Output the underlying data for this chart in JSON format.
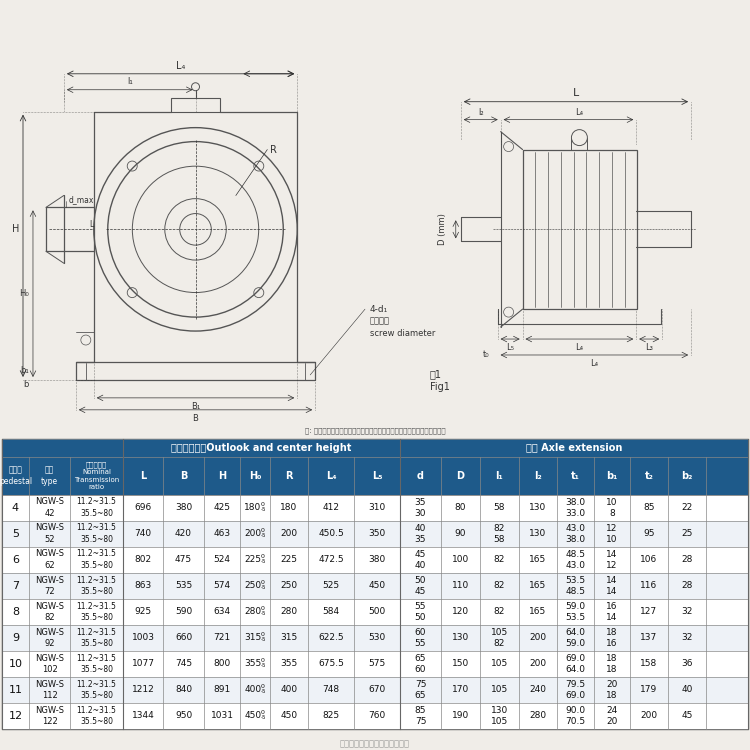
{
  "rows": [
    {
      "pedestal": "4",
      "type": "NGW-S\n42",
      "ratio": "11.2~31.5\n35.5~80",
      "L": "696",
      "B": "380",
      "H": "425",
      "H0": "180",
      "R": "180",
      "L4": "412",
      "L5": "310",
      "d": "35\n30",
      "D": "80",
      "l1": "58",
      "l2": "130",
      "t1": "38.0\n33.0",
      "b1": "10\n8",
      "t2": "85",
      "b2": "22"
    },
    {
      "pedestal": "5",
      "type": "NGW-S\n52",
      "ratio": "11.2~31.5\n35.5~80",
      "L": "740",
      "B": "420",
      "H": "463",
      "H0": "200",
      "R": "200",
      "L4": "450.5",
      "L5": "350",
      "d": "40\n35",
      "D": "90",
      "l1": "82\n58",
      "l2": "130",
      "t1": "43.0\n38.0",
      "b1": "12\n10",
      "t2": "95",
      "b2": "25"
    },
    {
      "pedestal": "6",
      "type": "NGW-S\n62",
      "ratio": "11.2~31.5\n35.5~80",
      "L": "802",
      "B": "475",
      "H": "524",
      "H0": "225",
      "R": "225",
      "L4": "472.5",
      "L5": "380",
      "d": "45\n40",
      "D": "100",
      "l1": "82",
      "l2": "165",
      "t1": "48.5\n43.0",
      "b1": "14\n12",
      "t2": "106",
      "b2": "28"
    },
    {
      "pedestal": "7",
      "type": "NGW-S\n72",
      "ratio": "11.2~31.5\n35.5~80",
      "L": "863",
      "B": "535",
      "H": "574",
      "H0": "250",
      "R": "250",
      "L4": "525",
      "L5": "450",
      "d": "50\n45",
      "D": "110",
      "l1": "82",
      "l2": "165",
      "t1": "53.5\n48.5",
      "b1": "14\n14",
      "t2": "116",
      "b2": "28"
    },
    {
      "pedestal": "8",
      "type": "NGW-S\n82",
      "ratio": "11.2~31.5\n35.5~80",
      "L": "925",
      "B": "590",
      "H": "634",
      "H0": "280",
      "R": "280",
      "L4": "584",
      "L5": "500",
      "d": "55\n50",
      "D": "120",
      "l1": "82",
      "l2": "165",
      "t1": "59.0\n53.5",
      "b1": "16\n14",
      "t2": "127",
      "b2": "32"
    },
    {
      "pedestal": "9",
      "type": "NGW-S\n92",
      "ratio": "11.2~31.5\n35.5~80",
      "L": "1003",
      "B": "660",
      "H": "721",
      "H0": "315",
      "R": "315",
      "L4": "622.5",
      "L5": "530",
      "d": "60\n55",
      "D": "130",
      "l1": "105\n82",
      "l2": "200",
      "t1": "64.0\n59.0",
      "b1": "18\n16",
      "t2": "137",
      "b2": "32"
    },
    {
      "pedestal": "10",
      "type": "NGW-S\n102",
      "ratio": "11.2~31.5\n35.5~80",
      "L": "1077",
      "B": "745",
      "H": "800",
      "H0": "355",
      "R": "355",
      "L4": "675.5",
      "L5": "575",
      "d": "65\n60",
      "D": "150",
      "l1": "105",
      "l2": "200",
      "t1": "69.0\n64.0",
      "b1": "18\n18",
      "t2": "158",
      "b2": "36"
    },
    {
      "pedestal": "11",
      "type": "NGW-S\n112",
      "ratio": "11.2~31.5\n35.5~80",
      "L": "1212",
      "B": "840",
      "H": "891",
      "H0": "400",
      "R": "400",
      "L4": "748",
      "L5": "670",
      "d": "75\n65",
      "D": "170",
      "l1": "105",
      "l2": "240",
      "t1": "79.5\n69.0",
      "b1": "20\n18",
      "t2": "179",
      "b2": "40"
    },
    {
      "pedestal": "12",
      "type": "NGW-S\n122",
      "ratio": "11.2~31.5\n35.5~80",
      "L": "1344",
      "B": "950",
      "H": "1031",
      "H0": "450",
      "R": "450",
      "L4": "825",
      "L5": "760",
      "d": "85\n75",
      "D": "190",
      "l1": "130\n105",
      "l2": "280",
      "t1": "90.0\n70.5",
      "b1": "24\n20",
      "t2": "200",
      "b2": "45"
    }
  ],
  "header_bg": "#1e5a8a",
  "header_fg": "#ffffff",
  "fig_bg": "#f0ede8",
  "draw_bg": "#f0ede8",
  "line_color": "#555555",
  "dim_color": "#333333",
  "watermark": "泰兴市百泰机械减速机有限公司"
}
